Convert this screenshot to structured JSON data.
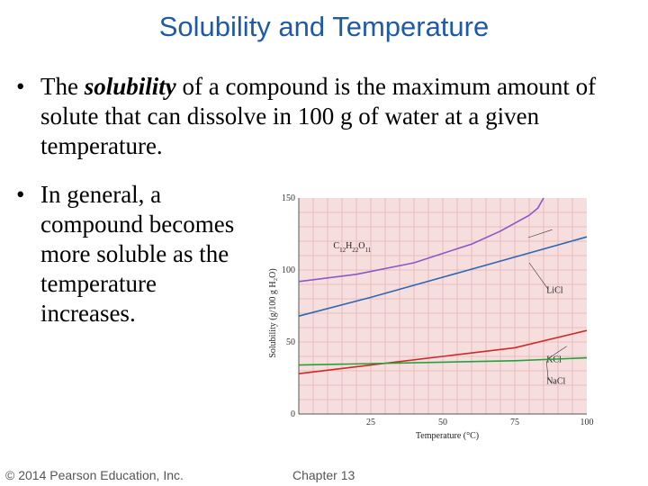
{
  "title": "Solubility and Temperature",
  "bullets": [
    {
      "marker": "•",
      "parts": [
        "The ",
        "solubility",
        " of a compound is the maximum amount of solute that can dissolve in 100 g of water at a given temperature."
      ]
    },
    {
      "marker": "•",
      "text": "In general, a compound becomes more soluble as the temperature increases."
    }
  ],
  "footer": {
    "copyright": "© 2014 Pearson Education, Inc.",
    "chapter": "Chapter 13"
  },
  "chart_data": {
    "type": "line",
    "xlabel": "Temperature (°C)",
    "ylabel": "Solubility (g/100 g H₂O)",
    "xlim": [
      0,
      100
    ],
    "ylim": [
      0,
      150
    ],
    "xticks": [
      25,
      50,
      75,
      100
    ],
    "yticks": [
      0,
      50,
      100,
      150
    ],
    "grid": true,
    "background": "#f6dede",
    "grid_color": "#e5b3b3",
    "series": [
      {
        "name": "C12H22O11",
        "color": "#8a58c7",
        "x": [
          0,
          20,
          40,
          60,
          70,
          80,
          83,
          85
        ],
        "y": [
          92,
          97,
          105,
          118,
          127,
          138,
          143,
          150
        ]
      },
      {
        "name": "LiCl",
        "color": "#2a66b5",
        "x": [
          0,
          25,
          50,
          75,
          100
        ],
        "y": [
          68,
          81,
          95,
          109,
          123
        ]
      },
      {
        "name": "KCl",
        "color": "#cc2a2a",
        "x": [
          0,
          25,
          50,
          75,
          100
        ],
        "y": [
          28,
          34,
          40,
          46,
          58
        ]
      },
      {
        "name": "NaCl",
        "color": "#22a33a",
        "x": [
          0,
          25,
          50,
          75,
          100
        ],
        "y": [
          34,
          35,
          36,
          37,
          39
        ]
      }
    ]
  }
}
